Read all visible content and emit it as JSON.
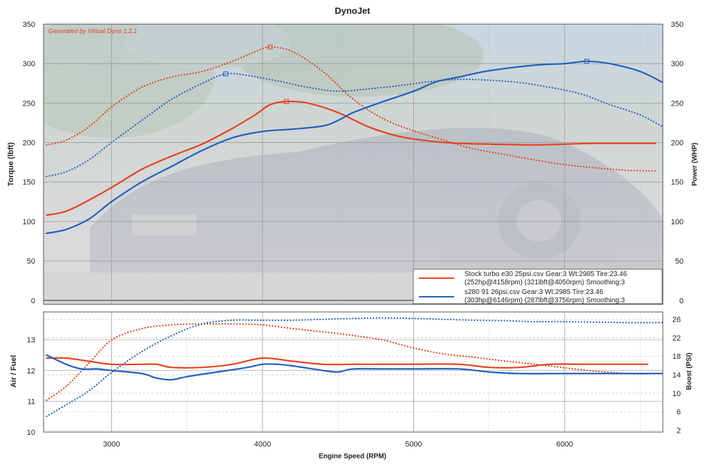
{
  "chart_data": [
    {
      "type": "line",
      "title": "DynoJet",
      "watermark": "Generated by Virtual Dyno 1.2.1",
      "xlabel": "Engine Speed (RPM)",
      "ylabel": "Torque (lbft)",
      "y2label": "Power (WHP)",
      "xlim": [
        2550,
        6650
      ],
      "ylim": [
        -5,
        350
      ],
      "y2lim": [
        -5,
        350
      ],
      "xticks": [
        "3000",
        "4000",
        "5000",
        "6000"
      ],
      "xtick_values": [
        3000,
        4000,
        5000,
        6000
      ],
      "yticks": [
        "0",
        "50",
        "100",
        "150",
        "200",
        "250",
        "300",
        "350"
      ],
      "ytick_values": [
        0,
        50,
        100,
        150,
        200,
        250,
        300,
        350
      ],
      "y2ticks": [
        "0",
        "50",
        "100",
        "150",
        "200",
        "250",
        "300",
        "350"
      ],
      "grid": true,
      "legend_position": "bottom-right",
      "legend": [
        {
          "line1": "Stock turbo e30 25psi.csv Gear:3 Wt:2985 Tire:23.46",
          "line2": "(252hp@4158rpm) (321lbft@4050rpm) Smoothing:3",
          "color": "#e8401c"
        },
        {
          "line1": "s280 91 26psi.csv Gear:3 Wt:2985 Tire:23.46",
          "line2": "(303hp@6146rpm) (287lbft@3756rpm) Smoothing:3",
          "color": "#1f5fbf"
        }
      ],
      "series": [
        {
          "name": "Stock turbo e30 25psi.csv",
          "measure": "Power (WHP)",
          "axis": "y2",
          "style": "solid",
          "color": "#e8401c",
          "x": [
            2570,
            2700,
            2850,
            3000,
            3200,
            3400,
            3600,
            3800,
            3950,
            4050,
            4158,
            4300,
            4500,
            4700,
            4900,
            5100,
            5300,
            5500,
            5800,
            6000,
            6200,
            6400,
            6600
          ],
          "y": [
            108,
            113,
            127,
            143,
            166,
            183,
            198,
            218,
            235,
            248,
            252,
            250,
            238,
            220,
            208,
            202,
            199,
            198,
            197,
            198,
            199,
            199,
            199
          ],
          "marker": {
            "x": 4158,
            "y": 252
          }
        },
        {
          "name": "Stock turbo e30 25psi.csv",
          "measure": "Torque (lbft)",
          "axis": "y",
          "style": "dotted",
          "color": "#e8401c",
          "x": [
            2570,
            2700,
            2850,
            3000,
            3200,
            3400,
            3600,
            3800,
            3950,
            4050,
            4200,
            4400,
            4600,
            4800,
            5000,
            5200,
            5400,
            5600,
            5800,
            6000,
            6200,
            6400,
            6600
          ],
          "y": [
            197,
            203,
            220,
            245,
            270,
            283,
            290,
            303,
            315,
            321,
            315,
            290,
            255,
            230,
            215,
            203,
            192,
            185,
            178,
            172,
            168,
            165,
            164
          ],
          "marker": {
            "x": 4050,
            "y": 321
          }
        },
        {
          "name": "s280 91 26psi.csv",
          "measure": "Power (WHP)",
          "axis": "y2",
          "style": "solid",
          "color": "#1f5fbf",
          "x": [
            2570,
            2700,
            2850,
            3000,
            3200,
            3400,
            3600,
            3800,
            4000,
            4200,
            4400,
            4500,
            4600,
            4800,
            5000,
            5150,
            5300,
            5500,
            5800,
            6000,
            6146,
            6300,
            6500,
            6650
          ],
          "y": [
            85,
            90,
            103,
            125,
            150,
            170,
            190,
            206,
            214,
            217,
            221,
            228,
            238,
            252,
            265,
            277,
            283,
            291,
            298,
            300,
            303,
            300,
            290,
            276
          ],
          "marker": {
            "x": 6146,
            "y": 303
          }
        },
        {
          "name": "s280 91 26psi.csv",
          "measure": "Torque (lbft)",
          "axis": "y",
          "style": "dotted",
          "color": "#1f5fbf",
          "x": [
            2570,
            2700,
            2850,
            3000,
            3200,
            3400,
            3600,
            3756,
            3900,
            4100,
            4300,
            4500,
            4700,
            4900,
            5100,
            5300,
            5500,
            5700,
            5900,
            6100,
            6300,
            6500,
            6650
          ],
          "y": [
            157,
            163,
            178,
            200,
            228,
            255,
            275,
            287,
            285,
            278,
            270,
            265,
            268,
            272,
            277,
            280,
            279,
            276,
            270,
            262,
            248,
            235,
            220
          ],
          "marker": {
            "x": 3756,
            "y": 287
          }
        }
      ]
    },
    {
      "type": "line",
      "xlabel": "Engine Speed (RPM)",
      "ylabel": "Air / Fuel",
      "y2label": "Boost (PSI)",
      "xlim": [
        2550,
        6650
      ],
      "ylim": [
        10,
        13.9
      ],
      "y2lim": [
        1.6,
        27.6
      ],
      "yticks": [
        "10",
        "11",
        "12",
        "13"
      ],
      "ytick_values": [
        10,
        11,
        12,
        13
      ],
      "y2ticks": [
        "2",
        "6",
        "10",
        "14",
        "18",
        "22",
        "26"
      ],
      "y2tick_values": [
        2,
        6,
        10,
        14,
        18,
        22,
        26
      ],
      "grid": true,
      "series": [
        {
          "name": "Stock turbo e30 25psi.csv",
          "measure": "Air / Fuel",
          "axis": "y",
          "style": "solid",
          "color": "#e8401c",
          "x": [
            2570,
            2700,
            2850,
            3000,
            3200,
            3300,
            3400,
            3600,
            3800,
            4000,
            4200,
            4400,
            4600,
            4800,
            5000,
            5300,
            5500,
            5700,
            5900,
            6100,
            6300,
            6550
          ],
          "y": [
            12.4,
            12.4,
            12.3,
            12.2,
            12.2,
            12.2,
            12.1,
            12.1,
            12.2,
            12.4,
            12.3,
            12.2,
            12.2,
            12.2,
            12.2,
            12.2,
            12.1,
            12.1,
            12.2,
            12.2,
            12.2,
            12.2
          ]
        },
        {
          "name": "Stock turbo e30 25psi.csv",
          "measure": "Boost (PSI)",
          "axis": "y2",
          "style": "dotted",
          "color": "#e8401c",
          "x": [
            2570,
            2700,
            2850,
            3000,
            3200,
            3400,
            3600,
            3800,
            4000,
            4200,
            4400,
            4600,
            4800,
            5000,
            5200,
            5400,
            5600,
            5800,
            6000,
            6200,
            6400,
            6550
          ],
          "y": [
            8.5,
            11.5,
            16.5,
            21.5,
            24,
            24.8,
            25,
            25,
            24.8,
            24,
            23.3,
            22.5,
            21.5,
            19.8,
            18.5,
            17.8,
            17,
            16.3,
            15.5,
            14.8,
            14.3,
            14.2
          ]
        },
        {
          "name": "s280 91 26psi.csv",
          "measure": "Air / Fuel",
          "axis": "y",
          "style": "solid",
          "color": "#1f5fbf",
          "x": [
            2570,
            2700,
            2800,
            2900,
            3000,
            3200,
            3300,
            3400,
            3500,
            3700,
            3900,
            4000,
            4100,
            4200,
            4400,
            4500,
            4600,
            4800,
            5000,
            5300,
            5500,
            5700,
            6000,
            6300,
            6650
          ],
          "y": [
            12.5,
            12.2,
            12.05,
            12.05,
            12.0,
            11.9,
            11.75,
            11.7,
            11.8,
            11.95,
            12.1,
            12.2,
            12.2,
            12.15,
            12.0,
            11.95,
            12.05,
            12.05,
            12.05,
            12.05,
            11.95,
            11.9,
            11.9,
            11.9,
            11.9
          ]
        },
        {
          "name": "s280 91 26psi.csv",
          "measure": "Boost (PSI)",
          "axis": "y2",
          "style": "dotted",
          "color": "#1f5fbf",
          "x": [
            2570,
            2700,
            2850,
            3000,
            3200,
            3400,
            3600,
            3800,
            4000,
            4200,
            4400,
            4600,
            4800,
            5000,
            5200,
            5400,
            5600,
            5800,
            6000,
            6200,
            6400,
            6650
          ],
          "y": [
            5,
            7.5,
            10.5,
            14.5,
            19,
            22.5,
            25,
            25.8,
            25.8,
            25.8,
            26,
            26.2,
            26.3,
            26.2,
            26,
            25.8,
            25.7,
            25.5,
            25.5,
            25.4,
            25.3,
            25.3
          ]
        }
      ]
    }
  ]
}
